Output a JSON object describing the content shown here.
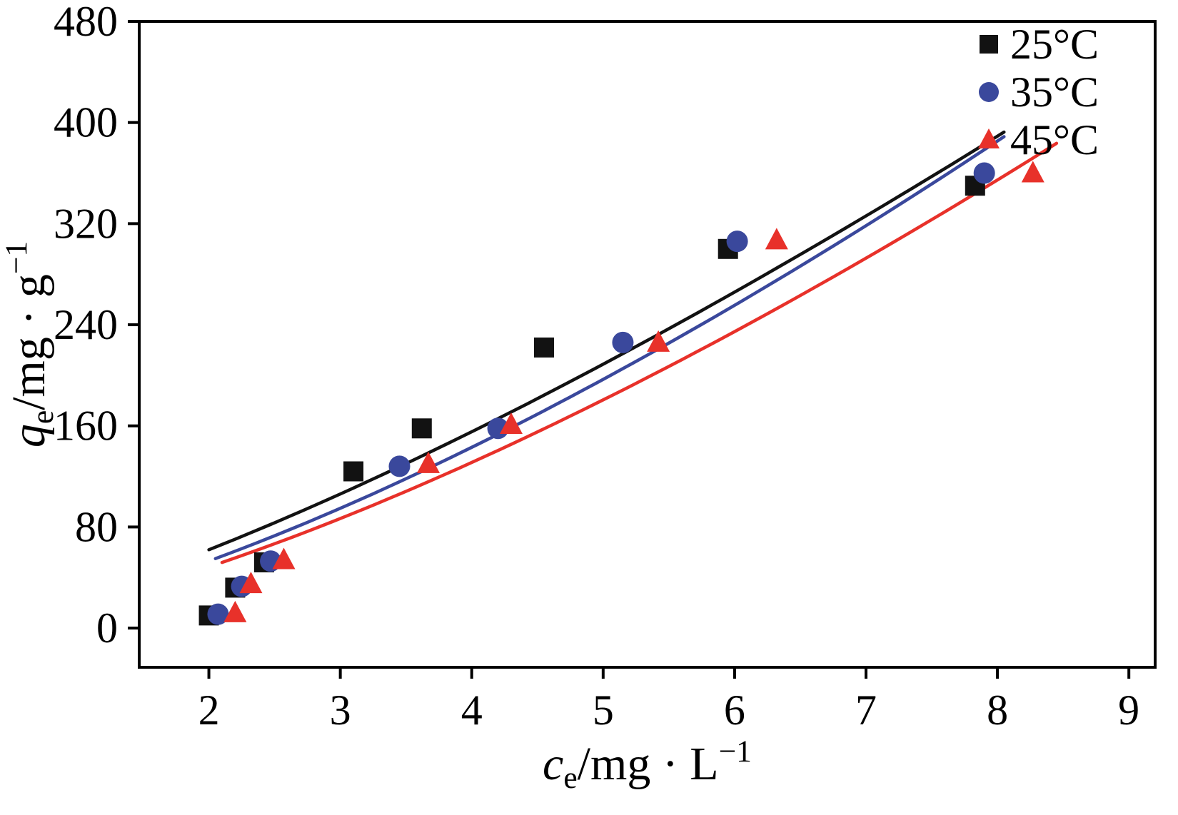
{
  "chart_data": {
    "type": "scatter",
    "title": "",
    "xlabel": "ce/mg·L−1",
    "ylabel": "qe/mg·g−1",
    "xlabel_parts": [
      {
        "t": "c",
        "italic": true
      },
      {
        "t": "e",
        "sub": true
      },
      {
        "t": "/mg · L"
      },
      {
        "t": "−1",
        "sup": true
      }
    ],
    "ylabel_parts": [
      {
        "t": "q",
        "italic": true
      },
      {
        "t": "e",
        "sub": true
      },
      {
        "t": "/mg · g"
      },
      {
        "t": "−1",
        "sup": true
      }
    ],
    "x_ticks": [
      2,
      3,
      4,
      5,
      6,
      7,
      8,
      9
    ],
    "y_ticks": [
      0,
      80,
      160,
      240,
      320,
      400,
      480
    ],
    "x_range": [
      1.47,
      9.2
    ],
    "y_range": [
      -31,
      480
    ],
    "grid": false,
    "legend_position": "top-right-inside",
    "background": "#ffffff",
    "series": [
      {
        "name": "25°C",
        "marker": "square",
        "color": "#121212",
        "points": [
          [
            2.0,
            10
          ],
          [
            2.2,
            32
          ],
          [
            2.42,
            52
          ],
          [
            3.1,
            124
          ],
          [
            3.62,
            158
          ],
          [
            4.55,
            222
          ],
          [
            5.95,
            300
          ],
          [
            7.83,
            350
          ]
        ]
      },
      {
        "name": "35°C",
        "marker": "circle",
        "color": "#3a489c",
        "points": [
          [
            2.07,
            11
          ],
          [
            2.25,
            33
          ],
          [
            2.47,
            53
          ],
          [
            3.45,
            128
          ],
          [
            4.2,
            158
          ],
          [
            5.15,
            226
          ],
          [
            6.02,
            306
          ],
          [
            7.9,
            360
          ]
        ]
      },
      {
        "name": "45°C",
        "marker": "triangle",
        "color": "#e8312a",
        "points": [
          [
            2.2,
            12
          ],
          [
            2.32,
            35
          ],
          [
            2.57,
            54
          ],
          [
            3.67,
            130
          ],
          [
            4.3,
            161
          ],
          [
            5.42,
            226
          ],
          [
            6.32,
            307
          ],
          [
            8.27,
            360
          ]
        ]
      }
    ],
    "fit_curves": [
      {
        "series": "25C",
        "color": "#121212",
        "model": "power",
        "a": 24.75,
        "b": 1.325,
        "x_min": 2.0,
        "x_max": 8.05
      },
      {
        "series": "35C",
        "color": "#3a489c",
        "model": "power",
        "a": 19.7,
        "b": 1.43,
        "x_min": 2.05,
        "x_max": 8.05
      },
      {
        "series": "45C",
        "color": "#e8312a",
        "model": "power",
        "a": 17.9,
        "b": 1.436,
        "x_min": 2.1,
        "x_max": 8.45
      }
    ]
  }
}
